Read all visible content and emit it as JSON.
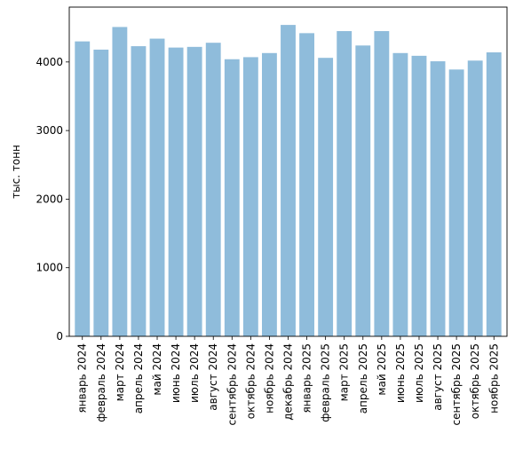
{
  "chart_data": {
    "type": "bar",
    "title": "",
    "xlabel": "",
    "ylabel": "тыс. тонн",
    "ylim": [
      0,
      4800
    ],
    "yticks": [
      0,
      1000,
      2000,
      3000,
      4000
    ],
    "grid": false,
    "bar_color": "#8fbcdb",
    "categories": [
      "январь 2024",
      "февраль 2024",
      "март 2024",
      "апрель 2024",
      "май 2024",
      "июнь 2024",
      "июль 2024",
      "август 2024",
      "сентябрь 2024",
      "октябрь 2024",
      "ноябрь 2024",
      "декабрь 2024",
      "январь 2025",
      "февраль 2025",
      "март 2025",
      "апрель 2025",
      "май 2025",
      "июнь 2025",
      "июль 2025",
      "август 2025",
      "сентябрь 2025",
      "октябрь 2025",
      "ноябрь 2025"
    ],
    "values": [
      4300,
      4180,
      4510,
      4230,
      4340,
      4210,
      4220,
      4280,
      4040,
      4070,
      4130,
      4540,
      4420,
      4060,
      4450,
      4240,
      4450,
      4130,
      4090,
      4010,
      3890,
      4020,
      4140
    ]
  }
}
